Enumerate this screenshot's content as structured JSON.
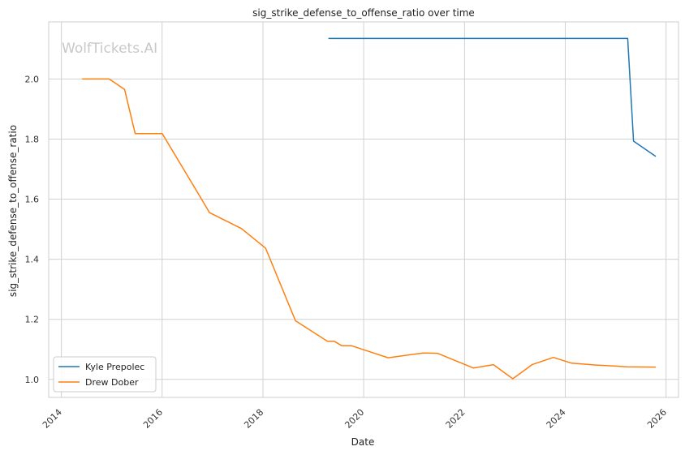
{
  "chart_data": {
    "type": "line",
    "title": "sig_strike_defense_to_offense_ratio over time",
    "xlabel": "Date",
    "ylabel": "sig_strike_defense_to_offense_ratio",
    "watermark": "WolfTickets.AI",
    "x_ticks": [
      "2014",
      "2016",
      "2018",
      "2020",
      "2022",
      "2024",
      "2026"
    ],
    "y_ticks": [
      "1.0",
      "1.2",
      "1.4",
      "1.6",
      "1.8",
      "2.0"
    ],
    "xlim": [
      "2013-10-01",
      "2026-04-01"
    ],
    "ylim": [
      0.94,
      2.19
    ],
    "grid": true,
    "legend_position": "lower-left",
    "series": [
      {
        "name": "Kyle Prepolec",
        "color": "#1f77b4",
        "points": [
          {
            "x": "2019-04-20",
            "y": 2.135
          },
          {
            "x": "2025-03-29",
            "y": 2.135
          },
          {
            "x": "2025-05-10",
            "y": 1.793
          },
          {
            "x": "2025-10-18",
            "y": 1.742
          }
        ]
      },
      {
        "name": "Drew Dober",
        "color": "#ff7f0e",
        "points": [
          {
            "x": "2014-05-31",
            "y": 2.0
          },
          {
            "x": "2014-12-13",
            "y": 2.0
          },
          {
            "x": "2015-04-04",
            "y": 1.965
          },
          {
            "x": "2015-06-20",
            "y": 1.818
          },
          {
            "x": "2016-01-02",
            "y": 1.818
          },
          {
            "x": "2016-09-17",
            "y": 1.62
          },
          {
            "x": "2016-12-10",
            "y": 1.555
          },
          {
            "x": "2017-07-29",
            "y": 1.502
          },
          {
            "x": "2018-01-20",
            "y": 1.437
          },
          {
            "x": "2018-08-25",
            "y": 1.195
          },
          {
            "x": "2019-04-13",
            "y": 1.127
          },
          {
            "x": "2019-06-01",
            "y": 1.127
          },
          {
            "x": "2019-07-27",
            "y": 1.112
          },
          {
            "x": "2019-10-05",
            "y": 1.112
          },
          {
            "x": "2020-01-18",
            "y": 1.096
          },
          {
            "x": "2020-06-27",
            "y": 1.072
          },
          {
            "x": "2021-03-06",
            "y": 1.088
          },
          {
            "x": "2021-06-19",
            "y": 1.087
          },
          {
            "x": "2022-03-05",
            "y": 1.038
          },
          {
            "x": "2022-07-30",
            "y": 1.049
          },
          {
            "x": "2022-12-17",
            "y": 1.002
          },
          {
            "x": "2023-05-06",
            "y": 1.049
          },
          {
            "x": "2023-10-07",
            "y": 1.073
          },
          {
            "x": "2024-02-17",
            "y": 1.054
          },
          {
            "x": "2024-08-03",
            "y": 1.048
          },
          {
            "x": "2025-03-22",
            "y": 1.042
          },
          {
            "x": "2025-10-18",
            "y": 1.041
          }
        ]
      }
    ]
  }
}
